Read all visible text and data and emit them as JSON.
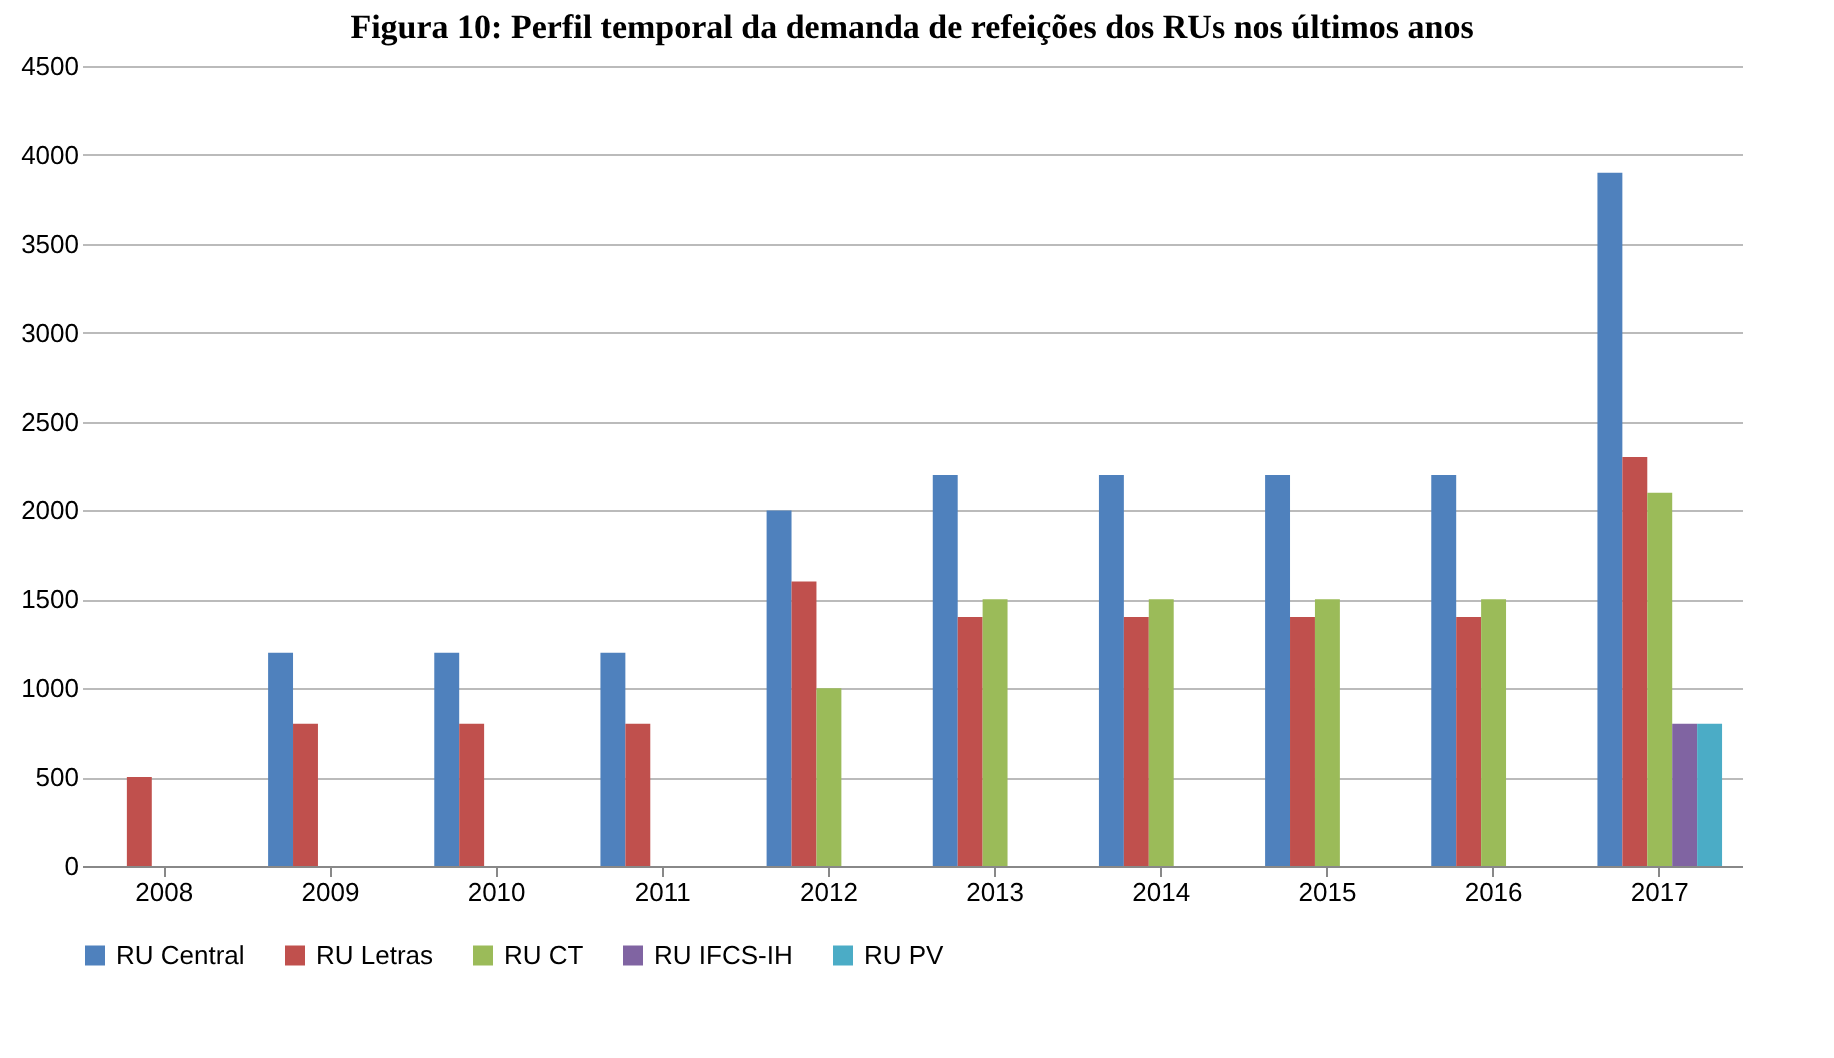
{
  "chart_data": {
    "type": "bar",
    "title": "Figura 10: Perfil temporal da demanda de refeições dos RUs nos últimos anos",
    "categories": [
      "2008",
      "2009",
      "2010",
      "2011",
      "2012",
      "2013",
      "2014",
      "2015",
      "2016",
      "2017"
    ],
    "series": [
      {
        "name": "RU Central",
        "color": "#4f81bd",
        "values": [
          null,
          1200,
          1200,
          1200,
          2000,
          2200,
          2200,
          2200,
          2200,
          3900
        ]
      },
      {
        "name": "RU Letras",
        "color": "#c0504d",
        "values": [
          500,
          800,
          800,
          800,
          1600,
          1400,
          1400,
          1400,
          1400,
          2300
        ]
      },
      {
        "name": "RU CT",
        "color": "#9bbb59",
        "values": [
          null,
          null,
          null,
          null,
          1000,
          1500,
          1500,
          1500,
          1500,
          2100
        ]
      },
      {
        "name": "RU IFCS-IH",
        "color": "#8064a2",
        "values": [
          null,
          null,
          null,
          null,
          null,
          null,
          null,
          null,
          null,
          800
        ]
      },
      {
        "name": "RU PV",
        "color": "#4bacc6",
        "values": [
          null,
          null,
          null,
          null,
          null,
          null,
          null,
          null,
          null,
          800
        ]
      }
    ],
    "ylim": [
      0,
      4500
    ],
    "yticks": [
      0,
      500,
      1000,
      1500,
      2000,
      2500,
      3000,
      3500,
      4000,
      4500
    ],
    "grid": "y",
    "legend": "bottom"
  }
}
